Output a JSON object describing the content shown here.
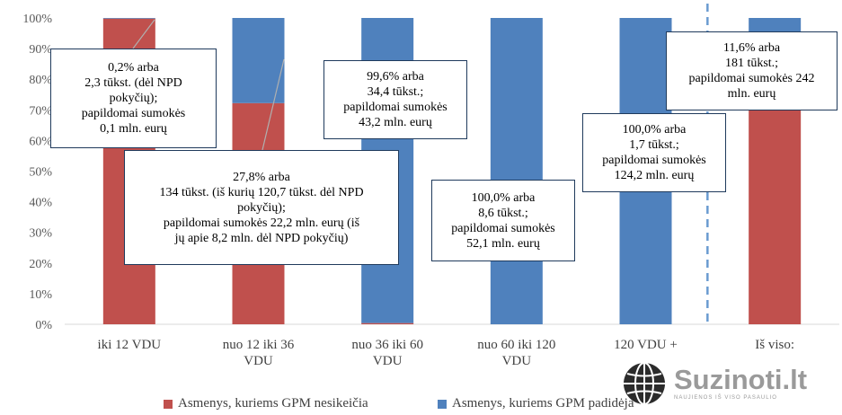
{
  "chart_data": {
    "type": "bar",
    "stacked": true,
    "categories": [
      [
        "iki 12 VDU"
      ],
      [
        "nuo 12 iki 36",
        "VDU"
      ],
      [
        "nuo 36 iki 60",
        "VDU"
      ],
      [
        "nuo 60 iki 120",
        "VDU"
      ],
      [
        "120 VDU +"
      ],
      [
        "Iš viso:"
      ]
    ],
    "series": [
      {
        "name": "Asmenys, kuriems GPM nesikeičia",
        "color": "#c0504d",
        "values": [
          99.8,
          72.2,
          0.4,
          0.0,
          0.0,
          88.4
        ]
      },
      {
        "name": "Asmenys, kuriems GPM padidėja",
        "color": "#4f81bd",
        "values": [
          0.2,
          27.8,
          99.6,
          100.0,
          100.0,
          11.6
        ]
      }
    ],
    "yticks": [
      "0%",
      "10%",
      "20%",
      "30%",
      "40%",
      "50%",
      "60%",
      "70%",
      "80%",
      "90%",
      "100%"
    ],
    "ylim": [
      0,
      100
    ],
    "grid": false,
    "legend_position": "bottom",
    "separator": "dashed vertical line between '120 VDU +' and 'Iš viso:'",
    "annotations": [
      {
        "lines": [
          "0,2% arba",
          "2,3 tūkst. (dėl NPD",
          "pokyčių);",
          "papildomai sumokės",
          "0,1 mln. eurų"
        ]
      },
      {
        "lines": [
          "27,8% arba",
          "134 tūkst. (iš kurių 120,7 tūkst. dėl NPD",
          "pokyčių);",
          "papildomai sumokės 22,2 mln. eurų (iš",
          "jų apie 8,2 mln. dėl NPD pokyčių)"
        ]
      },
      {
        "lines": [
          "99,6% arba",
          "34,4 tūkst.;",
          "papildomai sumokės",
          "43,2 mln. eurų"
        ]
      },
      {
        "lines": [
          "100,0% arba",
          "8,6 tūkst.;",
          "papildomai sumokės",
          "52,1 mln. eurų"
        ]
      },
      {
        "lines": [
          "100,0% arba",
          "1,7 tūkst.;",
          "papildomai sumokės",
          "124,2 mln. eurų"
        ]
      },
      {
        "lines": [
          "11,6% arba",
          "181 tūkst.;",
          "papildomai sumokės 242",
          "mln. eurų"
        ]
      }
    ]
  },
  "logo": {
    "name": "Suzinoti.lt",
    "tagline": "NAUJIENOS IŠ VISO PASAULIO",
    "icon": "globe-icon"
  }
}
